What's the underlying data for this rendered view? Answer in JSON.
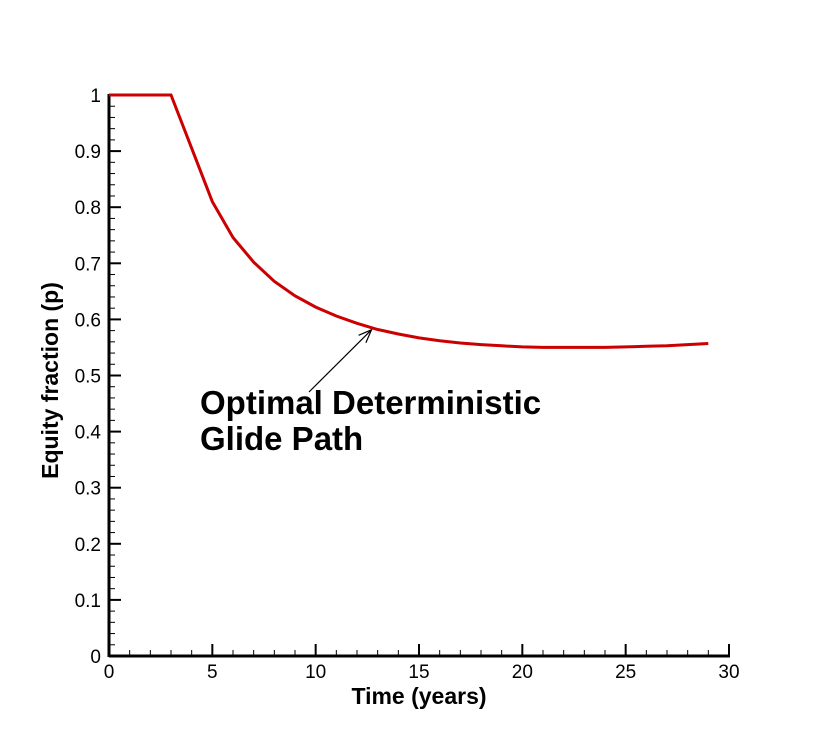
{
  "chart_data": {
    "type": "line",
    "title": "",
    "xlabel": "Time (years)",
    "ylabel": "Equity fraction (p)",
    "xlim": [
      0,
      30
    ],
    "ylim": [
      0,
      1
    ],
    "x_ticks": [
      "0",
      "5",
      "10",
      "15",
      "20",
      "25",
      "30"
    ],
    "y_ticks": [
      "0",
      "0.1",
      "0.2",
      "0.3",
      "0.4",
      "0.5",
      "0.6",
      "0.7",
      "0.8",
      "0.9",
      "1"
    ],
    "grid": false,
    "line_color": "#cc0000",
    "series": [
      {
        "x": [
          0,
          1,
          2,
          3,
          4,
          5,
          6,
          7,
          8,
          9,
          10,
          11,
          12,
          13,
          14,
          15,
          16,
          17,
          18,
          19,
          20,
          21,
          22,
          23,
          24,
          25,
          26,
          27,
          28,
          29
        ],
        "values": [
          1.0,
          1.0,
          1.0,
          1.0,
          0.905,
          0.81,
          0.746,
          0.702,
          0.668,
          0.642,
          0.622,
          0.606,
          0.593,
          0.582,
          0.574,
          0.567,
          0.562,
          0.558,
          0.555,
          0.553,
          0.551,
          0.55,
          0.55,
          0.55,
          0.55,
          0.551,
          0.552,
          0.553,
          0.555,
          0.557
        ]
      }
    ],
    "annotations": [
      {
        "text_lines": [
          "Optimal Deterministic",
          "Glide Path"
        ],
        "arrow_to": [
          12.7,
          0.585
        ]
      }
    ]
  }
}
